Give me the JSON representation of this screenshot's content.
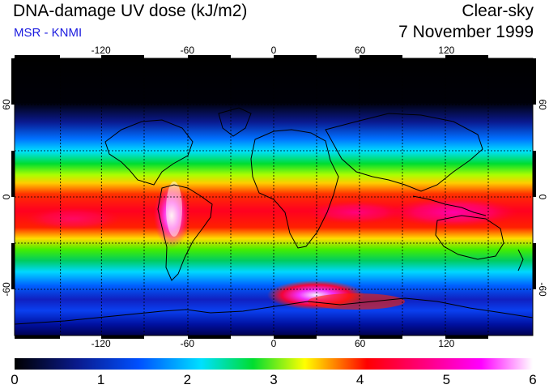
{
  "header": {
    "title": "DNA-damage UV dose (kJ/m2)",
    "subtitle": "MSR - KNMI",
    "condition": "Clear-sky",
    "date": "7 November 1999"
  },
  "map": {
    "lon_ticks": [
      "-120",
      "-60",
      "0",
      "60",
      "120"
    ],
    "lon_values": [
      -120,
      -60,
      0,
      60,
      120
    ],
    "lat_ticks": [
      "60",
      "0",
      "-60"
    ],
    "lat_values": [
      60,
      0,
      -60
    ],
    "lon_range": [
      -180,
      180
    ],
    "lat_range": [
      -90,
      90
    ],
    "grid_spacing_deg": 30
  },
  "colorbar": {
    "labels": [
      "0",
      "1",
      "2",
      "3",
      "4",
      "5",
      "6"
    ],
    "min": 0,
    "max": 6,
    "stops": [
      "#000000",
      "#0a1a8c",
      "#0050ff",
      "#00e0ff",
      "#00dd30",
      "#ffff00",
      "#ff0000",
      "#ff0088",
      "#ff00ff",
      "#ffffff"
    ]
  }
}
